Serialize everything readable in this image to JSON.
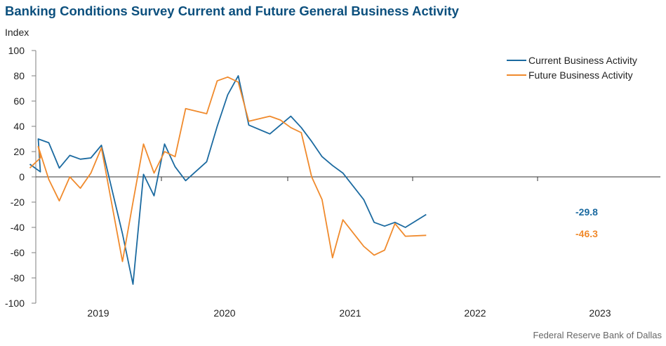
{
  "title": "Banking Conditions Survey Current and Future General Business Activity",
  "source": "Federal Reserve Bank of Dallas",
  "chart_data": {
    "type": "line",
    "ylabel": "Index",
    "ylim": [
      -100,
      100
    ],
    "y_ticks": [
      100,
      80,
      60,
      40,
      20,
      0,
      -20,
      -40,
      -60,
      -80,
      -100
    ],
    "x_ticks": [
      "2019",
      "2020",
      "2021",
      "2022",
      "2023"
    ],
    "grid": false,
    "legend_position": "top-right",
    "colors": {
      "current": "#1b6aa0",
      "future": "#f08a2c"
    },
    "series": [
      {
        "name": "Current Business Activity",
        "x": [
          "2018-11",
          "2018-12",
          "2019-01",
          "2019-02",
          "2019-03",
          "2019-04",
          "2019-05",
          "2019-06",
          "2019-07",
          "2019-09",
          "2019-10",
          "2019-11",
          "2019-12",
          "2020-01",
          "2020-02",
          "2020-03",
          "2020-05",
          "2020-06",
          "2020-07",
          "2020-08",
          "2020-09",
          "2020-11",
          "2020-12",
          "2021-01",
          "2021-02",
          "2021-03",
          "2021-04",
          "2021-05",
          "2021-06",
          "2021-08",
          "2021-09",
          "2021-10",
          "2021-11",
          "2021-12",
          "2022-02",
          "2022-03",
          "2022-05",
          "2022-06",
          "2022-07",
          "2022-08",
          "2022-09"
        ],
        "values": [
          10,
          4,
          30,
          27,
          7,
          17,
          14,
          15,
          25,
          -45,
          -85,
          2,
          -15,
          26,
          8,
          -3,
          12,
          40,
          65,
          80,
          41,
          34,
          41,
          48,
          39,
          28,
          16,
          9,
          3,
          -18,
          -36,
          -39,
          -36,
          -40,
          -29.8,
          null,
          null,
          null,
          null,
          null,
          null
        ],
        "end_label": "-29.8"
      },
      {
        "name": "Future Business Activity",
        "x": [
          "2018-11",
          "2018-12",
          "2019-01",
          "2019-02",
          "2019-03",
          "2019-04",
          "2019-05",
          "2019-06",
          "2019-07",
          "2019-09",
          "2019-10",
          "2019-11",
          "2019-12",
          "2020-01",
          "2020-02",
          "2020-03",
          "2020-05",
          "2020-06",
          "2020-07",
          "2020-08",
          "2020-09",
          "2020-11",
          "2020-12",
          "2021-01",
          "2021-02",
          "2021-03",
          "2021-04",
          "2021-05",
          "2021-06",
          "2021-08",
          "2021-09",
          "2021-10",
          "2021-11",
          "2021-12",
          "2022-02",
          "2022-03",
          "2022-05",
          "2022-06",
          "2022-07",
          "2022-08",
          "2022-09"
        ],
        "values": [
          7,
          15,
          24,
          -2,
          -19,
          0,
          -9,
          3,
          23,
          -67,
          -20,
          26,
          3,
          20,
          16,
          54,
          50,
          76,
          79,
          75,
          44,
          48,
          45,
          39,
          35,
          0,
          -18,
          -64,
          -34,
          -55,
          -62,
          -58,
          -37,
          -47,
          -46.3,
          null,
          null,
          null,
          null,
          null,
          null
        ],
        "end_label": "-46.3"
      }
    ]
  }
}
